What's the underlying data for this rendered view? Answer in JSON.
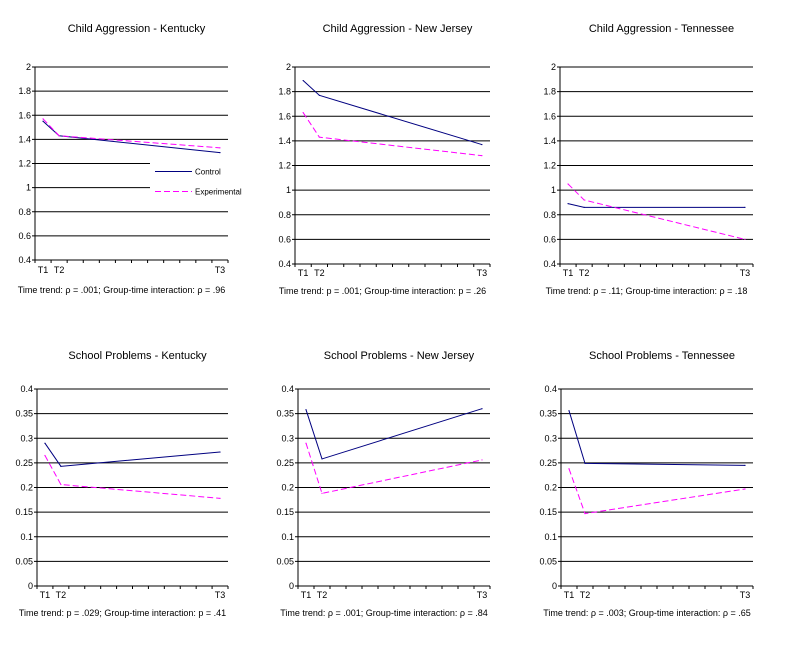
{
  "colors": {
    "control": "#000080",
    "experimental": "#ff00ff",
    "grid": "#000000"
  },
  "legend": {
    "placement": "inside-right",
    "chart_index": 0,
    "entries": [
      "Control",
      "Experimental"
    ]
  },
  "chart_data": [
    {
      "type": "line",
      "title": "Child Aggression - Kentucky",
      "caption": "Time trend: ρ = .001; Group-time interaction: ρ = .96",
      "ylim": [
        0.4,
        2
      ],
      "yticks": [
        "0.4",
        "0.6",
        "0.8",
        "1",
        "1.2",
        "1.4",
        "1.6",
        "1.8",
        "2"
      ],
      "grid": true,
      "x_categories": 12,
      "x_labels": [
        {
          "pos": 0,
          "label": "T1"
        },
        {
          "pos": 1,
          "label": "T2"
        },
        {
          "pos": 11,
          "label": "T3"
        }
      ],
      "series": [
        {
          "name": "Control",
          "values": [
            1.55,
            1.43,
            1.29
          ]
        },
        {
          "name": "Experimental",
          "values": [
            1.57,
            1.43,
            1.33
          ]
        }
      ]
    },
    {
      "type": "line",
      "title": "Child Aggression - New Jersey",
      "caption": "Time trend: p = .001; Group-time interaction: p = .26",
      "ylim": [
        0.4,
        2
      ],
      "yticks": [
        "0.4",
        "0.6",
        "0.8",
        "1",
        "1.2",
        "1.4",
        "1.6",
        "1.8",
        "2"
      ],
      "grid": true,
      "x_categories": 12,
      "x_labels": [
        {
          "pos": 0,
          "label": "T1"
        },
        {
          "pos": 1,
          "label": "T2"
        },
        {
          "pos": 11,
          "label": "T3"
        }
      ],
      "series": [
        {
          "name": "Control",
          "values": [
            1.89,
            1.77,
            1.37
          ]
        },
        {
          "name": "Experimental",
          "values": [
            1.63,
            1.43,
            1.28
          ]
        }
      ]
    },
    {
      "type": "line",
      "title": "Child Aggression - Tennessee",
      "caption": "Time trend: ρ = .11; Group-time interaction: ρ = .18",
      "ylim": [
        0.4,
        2
      ],
      "yticks": [
        "0.4",
        "0.6",
        "0.8",
        "1",
        "1.2",
        "1.4",
        "1.6",
        "1.8",
        "2"
      ],
      "grid": true,
      "x_categories": 12,
      "x_labels": [
        {
          "pos": 0,
          "label": "T1"
        },
        {
          "pos": 1,
          "label": "T2"
        },
        {
          "pos": 11,
          "label": "T3"
        }
      ],
      "series": [
        {
          "name": "Control",
          "values": [
            0.89,
            0.86,
            0.86
          ]
        },
        {
          "name": "Experimental",
          "values": [
            1.05,
            0.92,
            0.6
          ]
        }
      ]
    },
    {
      "type": "line",
      "title": "School Problems - Kentucky",
      "caption": "Time trend: p = .029; Group-time interaction: p = .41",
      "ylim": [
        0,
        0.4
      ],
      "yticks": [
        "0",
        "0.05",
        "0.1",
        "0.15",
        "0.2",
        "0.25",
        "0.3",
        "0.35",
        "0.4"
      ],
      "grid": true,
      "x_categories": 12,
      "x_labels": [
        {
          "pos": 0,
          "label": "T1"
        },
        {
          "pos": 1,
          "label": "T2"
        },
        {
          "pos": 11,
          "label": "T3"
        }
      ],
      "series": [
        {
          "name": "Control",
          "values": [
            0.29,
            0.243,
            0.272
          ]
        },
        {
          "name": "Experimental",
          "values": [
            0.265,
            0.206,
            0.178
          ]
        }
      ]
    },
    {
      "type": "line",
      "title": "School Problems - New Jersey",
      "caption": "Time trend: ρ = .001; Group-time interaction: ρ = .84",
      "ylim": [
        0,
        0.4
      ],
      "yticks": [
        "0",
        "0.05",
        "0.1",
        "0.15",
        "0.2",
        "0.25",
        "0.3",
        "0.35",
        "0.4"
      ],
      "grid": true,
      "x_categories": 12,
      "x_labels": [
        {
          "pos": 0,
          "label": "T1"
        },
        {
          "pos": 1,
          "label": "T2"
        },
        {
          "pos": 11,
          "label": "T3"
        }
      ],
      "series": [
        {
          "name": "Control",
          "values": [
            0.358,
            0.258,
            0.36
          ]
        },
        {
          "name": "Experimental",
          "values": [
            0.29,
            0.188,
            0.256
          ]
        }
      ]
    },
    {
      "type": "line",
      "title": "School Problems - Tennessee",
      "caption": "Time trend: ρ = .003; Group-time interaction: ρ = .65",
      "ylim": [
        0,
        0.4
      ],
      "yticks": [
        "0",
        "0.05",
        "0.1",
        "0.15",
        "0.2",
        "0.25",
        "0.3",
        "0.35",
        "0.4"
      ],
      "grid": true,
      "x_categories": 12,
      "x_labels": [
        {
          "pos": 0,
          "label": "T1"
        },
        {
          "pos": 1,
          "label": "T2"
        },
        {
          "pos": 11,
          "label": "T3"
        }
      ],
      "series": [
        {
          "name": "Control",
          "values": [
            0.356,
            0.249,
            0.245
          ]
        },
        {
          "name": "Experimental",
          "values": [
            0.238,
            0.147,
            0.197
          ]
        }
      ]
    }
  ]
}
